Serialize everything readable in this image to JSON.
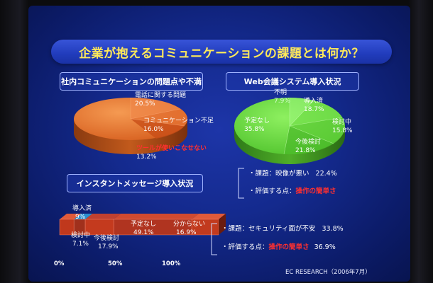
{
  "slide": {
    "title": "企業が抱えるコミュニケーションの課題とは何か？",
    "credit": "EC RESEARCH（2006年7月）"
  },
  "panel_complaints": {
    "title": "社内コミュニケーションの問題点や不満",
    "slices": [
      {
        "label": "電話に関する問題",
        "value": "20.5%"
      },
      {
        "label": "コミュニケーション不足",
        "value": "16.0%"
      },
      {
        "label": "ツールが使いこなせない",
        "value": "13.2%"
      }
    ]
  },
  "panel_web_meeting": {
    "title": "Web会議システム導入状況",
    "slices": [
      {
        "label": "不明",
        "value": "7.9%"
      },
      {
        "label": "導入済",
        "value": "18.7%"
      },
      {
        "label": "検討中",
        "value": "15.8%"
      },
      {
        "label": "今後検討",
        "value": "21.8%"
      },
      {
        "label": "予定なし",
        "value": "35.8%"
      }
    ],
    "notes": {
      "issue_label": "・課題：映像が悪い",
      "issue_value": "22.4%",
      "merit_label": "・評価する点：",
      "merit_value": "操作の簡単さ"
    }
  },
  "panel_instant_message": {
    "title": "インスタントメッセージ導入状況",
    "segments": [
      {
        "label": "導入済",
        "value": "9%",
        "share": 9
      },
      {
        "label": "検討中",
        "value": "7.1%",
        "share": 7.1
      },
      {
        "label": "今後検討",
        "value": "17.9%",
        "share": 17.9
      },
      {
        "label": "予定なし",
        "value": "49.1%",
        "share": 49.1
      },
      {
        "label": "分からない",
        "value": "16.9%",
        "share": 16.9
      }
    ],
    "axis_ticks": [
      "0%",
      "50%",
      "100%"
    ],
    "notes": {
      "issue_label": "・課題：セキュリティ面が不安",
      "issue_value": "33.8%",
      "merit_label": "・評価する点：",
      "merit_value": "操作の簡単さ",
      "merit_pct": "36.9%"
    }
  }
}
